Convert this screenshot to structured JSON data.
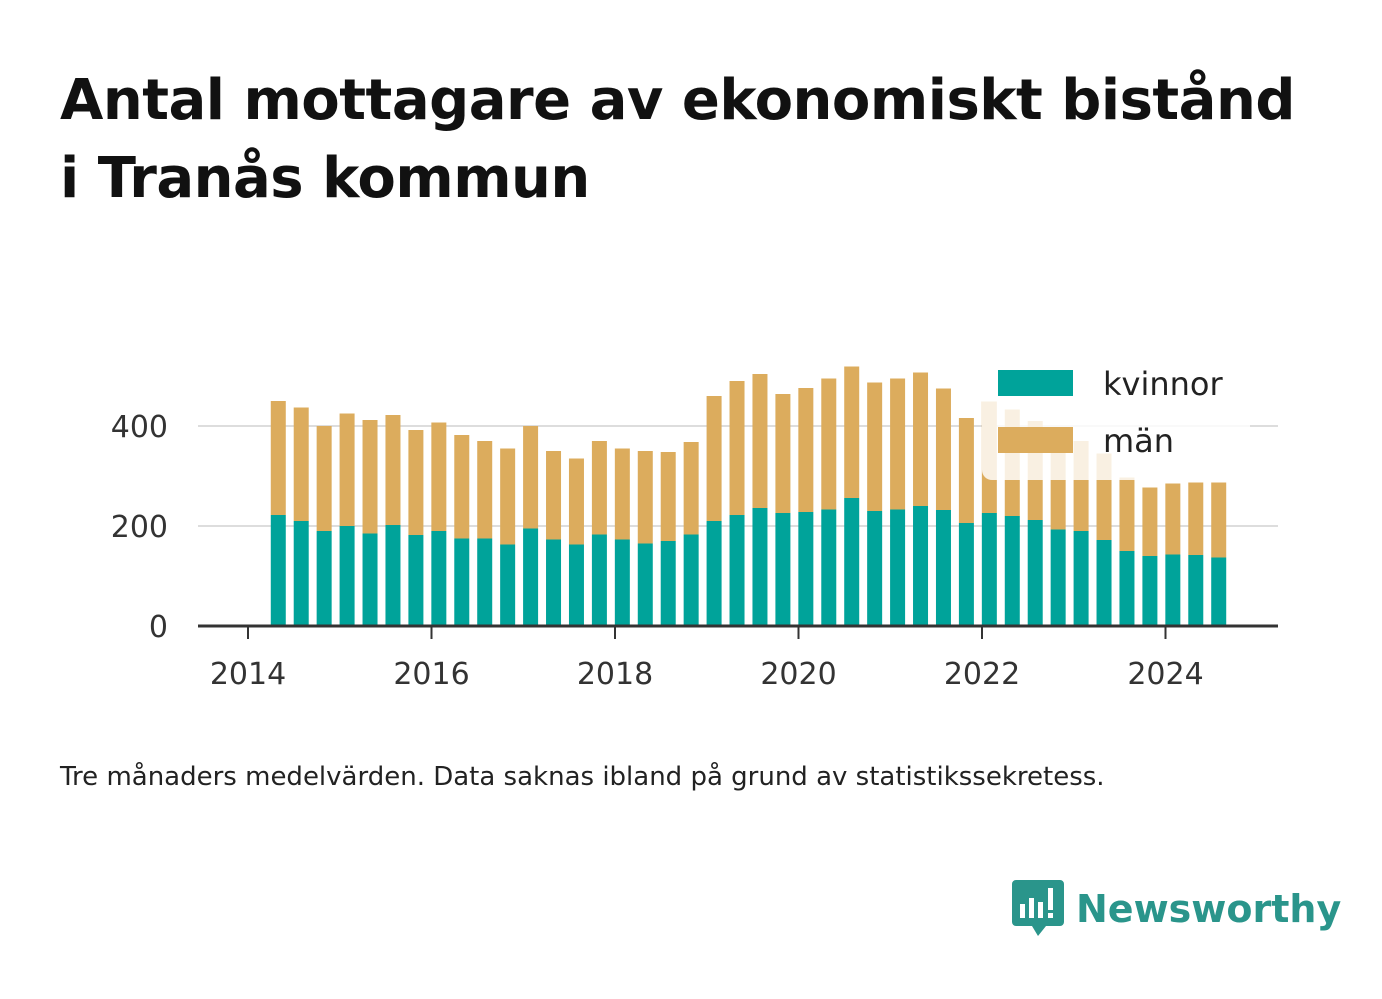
{
  "header": {
    "title": "Antal mottagare av ekonomiskt bistånd i Tranås kommun"
  },
  "footer": {
    "note": "Tre månaders medelvärden. Data saknas ibland på grund av statistikssekretess.",
    "brand": "Newsworthy",
    "brand_icon": "newsworthy-logo-icon"
  },
  "colors": {
    "kvinnor": "#00a39a",
    "man": "#dcac5d",
    "grid": "#dddddd",
    "axis": "#333333",
    "brand": "#2a958b"
  },
  "chart_data": {
    "type": "bar",
    "stacked": true,
    "x_ticks": [
      "2014",
      "2016",
      "2018",
      "2020",
      "2022",
      "2024"
    ],
    "y_ticks": [
      "0",
      "200",
      "400"
    ],
    "xlim": [
      2013.75,
      2025.2
    ],
    "ylim": [
      0,
      520
    ],
    "grid": true,
    "legend_position": "top-right",
    "x": [
      2014.33,
      2014.58,
      2014.83,
      2015.08,
      2015.33,
      2015.58,
      2015.83,
      2016.08,
      2016.33,
      2016.58,
      2016.83,
      2017.08,
      2017.33,
      2017.58,
      2017.83,
      2018.08,
      2018.33,
      2018.58,
      2018.83,
      2019.08,
      2019.33,
      2019.58,
      2019.83,
      2020.08,
      2020.33,
      2020.58,
      2020.83,
      2021.08,
      2021.33,
      2021.58,
      2021.83,
      2022.08,
      2022.33,
      2022.58,
      2022.83,
      2023.08,
      2023.33,
      2023.58,
      2023.83,
      2024.08,
      2024.33,
      2024.58
    ],
    "series": [
      {
        "name": "kvinnor",
        "values": [
          222,
          210,
          190,
          200,
          185,
          202,
          182,
          190,
          175,
          175,
          163,
          195,
          173,
          163,
          183,
          173,
          165,
          170,
          183,
          210,
          222,
          236,
          226,
          228,
          233,
          256,
          230,
          233,
          240,
          232,
          206,
          226,
          220,
          212,
          193,
          190,
          172,
          150,
          140,
          143,
          142,
          137
        ]
      },
      {
        "name": "män",
        "values": [
          228,
          227,
          210,
          225,
          227,
          220,
          210,
          217,
          207,
          195,
          192,
          205,
          177,
          172,
          187,
          182,
          185,
          178,
          185,
          250,
          268,
          268,
          238,
          248,
          262,
          263,
          257,
          262,
          267,
          243,
          210,
          223,
          213,
          198,
          190,
          180,
          173,
          147,
          137,
          142,
          145,
          150
        ]
      }
    ]
  }
}
